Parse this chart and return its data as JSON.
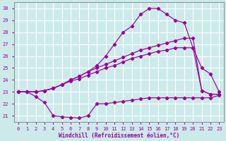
{
  "xlabel": "Windchill (Refroidissement éolien,°C)",
  "xlim": [
    -0.5,
    23.5
  ],
  "ylim": [
    20.5,
    30.5
  ],
  "yticks": [
    21,
    22,
    23,
    24,
    25,
    26,
    27,
    28,
    29,
    30
  ],
  "xticks": [
    0,
    1,
    2,
    3,
    4,
    5,
    6,
    7,
    8,
    9,
    10,
    11,
    12,
    13,
    14,
    15,
    16,
    17,
    18,
    19,
    20,
    21,
    22,
    23
  ],
  "bg_color": "#cceaea",
  "grid_color": "#ffffff",
  "line_color": "#990099",
  "series": [
    {
      "x": [
        0,
        1,
        2,
        3,
        4,
        5,
        6,
        7,
        8,
        9,
        10,
        11,
        12,
        13,
        14,
        15,
        16,
        17,
        18,
        19,
        20,
        21,
        22,
        23
      ],
      "y": [
        23,
        23,
        22.6,
        22.1,
        21.0,
        20.9,
        20.85,
        20.8,
        21.0,
        22.0,
        22.0,
        22.1,
        22.2,
        22.3,
        22.4,
        22.5,
        22.5,
        22.5,
        22.5,
        22.5,
        22.5,
        22.5,
        22.5,
        22.7
      ]
    },
    {
      "x": [
        0,
        1,
        2,
        3,
        4,
        5,
        6,
        7,
        8,
        9,
        10,
        11,
        12,
        13,
        14,
        15,
        16,
        17,
        18,
        19,
        20,
        21,
        22,
        23
      ],
      "y": [
        23,
        23,
        23,
        23.1,
        23.3,
        23.6,
        23.9,
        24.1,
        24.4,
        24.7,
        25.0,
        25.2,
        25.5,
        25.8,
        26.0,
        26.2,
        26.4,
        26.5,
        26.7,
        26.7,
        26.7,
        23.1,
        22.8,
        22.8
      ]
    },
    {
      "x": [
        0,
        1,
        2,
        3,
        4,
        5,
        6,
        7,
        8,
        9,
        10,
        11,
        12,
        13,
        14,
        15,
        16,
        17,
        18,
        19,
        20,
        21,
        22,
        23
      ],
      "y": [
        23,
        23,
        23,
        23.1,
        23.3,
        23.6,
        24.0,
        24.3,
        24.7,
        25.2,
        26.0,
        27.0,
        28.0,
        28.5,
        29.5,
        30.0,
        30.0,
        29.5,
        29.0,
        28.8,
        26.7,
        25.0,
        24.5,
        23.0
      ]
    },
    {
      "x": [
        0,
        1,
        2,
        3,
        4,
        5,
        6,
        7,
        8,
        9,
        10,
        11,
        12,
        13,
        14,
        15,
        16,
        17,
        18,
        19,
        20,
        21,
        22,
        23
      ],
      "y": [
        23,
        23,
        23,
        23.1,
        23.3,
        23.6,
        24.0,
        24.3,
        24.7,
        25.0,
        25.3,
        25.6,
        25.9,
        26.2,
        26.5,
        26.7,
        26.9,
        27.1,
        27.3,
        27.5,
        27.5,
        23.1,
        22.8,
        22.8
      ]
    }
  ]
}
